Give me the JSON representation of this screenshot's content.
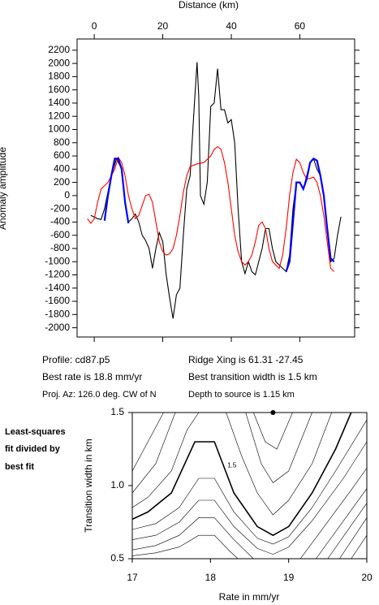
{
  "chart_data": [
    {
      "type": "line",
      "x_label": "Distance (km)",
      "y_label": "Anomaly amplitude",
      "xlim": [
        -5,
        76
      ],
      "xticks": [
        0,
        20,
        40,
        60
      ],
      "ylim": [
        -2140,
        2370
      ],
      "yticks": [
        -2000,
        -1800,
        -1600,
        -1400,
        -1200,
        -1000,
        -800,
        -600,
        -400,
        -200,
        0,
        200,
        400,
        600,
        800,
        1000,
        1200,
        1400,
        1600,
        1800,
        2000,
        2200
      ],
      "series": [
        {
          "color": "#000000",
          "x": [
            -1,
            1,
            2,
            3,
            5,
            6.5,
            8,
            9,
            10,
            11,
            12,
            13,
            14,
            15,
            16,
            17,
            18,
            19,
            20,
            21,
            22,
            23,
            24,
            25,
            26,
            27,
            28,
            29,
            30,
            30.5,
            31,
            32,
            33,
            34,
            35,
            36,
            37,
            38,
            39,
            40,
            41,
            42,
            43,
            44,
            45,
            46,
            47,
            48,
            49,
            50,
            51,
            52,
            53,
            54,
            55,
            56,
            57,
            58,
            59,
            60,
            61,
            62,
            63,
            64,
            65,
            66,
            67,
            68,
            69,
            70,
            71,
            72
          ],
          "values": [
            -300,
            -350,
            -360,
            -200,
            300,
            560,
            400,
            -100,
            -400,
            -350,
            -280,
            -400,
            -600,
            -680,
            -800,
            -1100,
            -800,
            -560,
            -700,
            -1200,
            -1550,
            -1860,
            -1500,
            -1400,
            -600,
            100,
            300,
            1200,
            2020,
            1500,
            0,
            -130,
            200,
            1350,
            1400,
            1920,
            1300,
            1300,
            1100,
            1150,
            800,
            -200,
            -1000,
            -1180,
            -1000,
            -1150,
            -1200,
            -1000,
            -800,
            -500,
            -500,
            -800,
            -1000,
            -1050,
            -1100,
            -1150,
            -900,
            -200,
            200,
            200,
            100,
            300,
            500,
            560,
            400,
            300,
            0,
            -500,
            -1000,
            -950,
            -600,
            -320
          ]
        },
        {
          "color": "#ff0000",
          "x": [
            -2,
            -1,
            0,
            1,
            2,
            4,
            6,
            7,
            8,
            9,
            10,
            11,
            12,
            13,
            14,
            15,
            16,
            17,
            18,
            19,
            20,
            21,
            22,
            23,
            24,
            25,
            26,
            27,
            28,
            30,
            32,
            34,
            35,
            36,
            37,
            38,
            39,
            40,
            41,
            42,
            43,
            44,
            45,
            46,
            47,
            48,
            49,
            50,
            51,
            52,
            53,
            54,
            55,
            56,
            57,
            58,
            59,
            60,
            61,
            62,
            63,
            64,
            65,
            66,
            67,
            68,
            69,
            70
          ],
          "values": [
            -350,
            -420,
            -350,
            -100,
            100,
            200,
            400,
            580,
            500,
            300,
            0,
            -200,
            -350,
            -300,
            -150,
            0,
            20,
            -100,
            -400,
            -700,
            -850,
            -900,
            -880,
            -800,
            -600,
            -300,
            50,
            300,
            440,
            480,
            500,
            600,
            700,
            740,
            700,
            500,
            200,
            -200,
            -600,
            -850,
            -1000,
            -1050,
            -1000,
            -900,
            -700,
            -450,
            -400,
            -500,
            -800,
            -1000,
            -1050,
            -1100,
            -900,
            -500,
            0,
            350,
            550,
            500,
            350,
            250,
            260,
            280,
            200,
            0,
            -300,
            -700,
            -1100,
            -1150
          ]
        },
        {
          "color": "#0000ff",
          "x": [
            3,
            4,
            5,
            6,
            7,
            8,
            9,
            10,
            33,
            56,
            57,
            58,
            59,
            60,
            61,
            62,
            63,
            64,
            65,
            66,
            67,
            68,
            69,
            70
          ],
          "values": [
            -380,
            0,
            300,
            560,
            560,
            400,
            -100,
            -420,
            null,
            -1150,
            -1000,
            -400,
            200,
            200,
            100,
            250,
            500,
            560,
            530,
            300,
            0,
            -500,
            -950,
            -1000
          ]
        }
      ],
      "notes": [
        "Profile: cd87.p5",
        "Best rate is 18.8 mm/yr",
        "Proj. Az: 126.0 deg. CW of N",
        "Ridge Xing is 61.31 -27.45",
        "Best transition width is 1.5 km",
        "Depth to source is   1.15 km"
      ]
    },
    {
      "type": "contour",
      "side_label": [
        "Least-squares",
        "fit divided by",
        "best fit"
      ],
      "x_label": "Rate in mm/yr",
      "y_label": "Transition width in km",
      "xlim": [
        17,
        20
      ],
      "xticks": [
        17,
        18,
        19,
        20
      ],
      "ylim": [
        0.5,
        1.5
      ],
      "yticks": [
        0.5,
        {
          "value": 1,
          "label": "1.0"
        },
        1.5
      ],
      "best_fit": {
        "x": 18.8,
        "y": 1.5
      },
      "contours": [
        {
          "label": "1.5",
          "x": [
            17,
            17.2,
            17.5,
            17.8,
            18.05,
            18.3,
            18.6,
            18.8,
            19.0,
            19.3,
            19.6,
            19.8
          ],
          "y": [
            0.77,
            0.82,
            0.95,
            1.3,
            1.3,
            0.95,
            0.72,
            0.66,
            0.72,
            0.95,
            1.25,
            1.5
          ]
        },
        {
          "x": [
            17,
            17.3,
            17.6,
            17.85,
            18.05,
            18.3,
            18.6,
            18.8,
            19.0,
            19.3,
            19.6,
            20.0
          ],
          "y": [
            0.7,
            0.74,
            0.85,
            1.05,
            1.05,
            0.82,
            0.64,
            0.6,
            0.65,
            0.85,
            1.1,
            1.45
          ]
        },
        {
          "x": [
            17,
            17.3,
            17.6,
            17.85,
            18.05,
            18.3,
            18.6,
            18.8,
            19.0,
            19.3,
            19.7,
            20.0
          ],
          "y": [
            0.63,
            0.66,
            0.75,
            0.9,
            0.9,
            0.72,
            0.57,
            0.53,
            0.58,
            0.76,
            1.05,
            1.3
          ]
        },
        {
          "x": [
            17,
            17.3,
            17.6,
            17.85,
            18.05,
            18.3,
            18.55
          ],
          "y": [
            0.56,
            0.59,
            0.66,
            0.78,
            0.78,
            0.63,
            0.5
          ]
        },
        {
          "x": [
            19.15,
            19.4,
            19.8,
            20.0
          ],
          "y": [
            0.5,
            0.68,
            0.97,
            1.12
          ]
        },
        {
          "x": [
            17,
            17.3,
            17.6,
            17.85,
            18.05,
            18.25,
            18.35
          ],
          "y": [
            0.52,
            0.54,
            0.58,
            0.66,
            0.66,
            0.55,
            0.5
          ]
        },
        {
          "x": [
            17,
            17.2,
            17.5,
            17.7,
            17.85
          ],
          "y": [
            0.85,
            0.92,
            1.1,
            1.38,
            1.5
          ]
        },
        {
          "x": [
            18.2,
            18.4,
            18.6,
            18.8,
            19.0,
            19.3,
            19.55
          ],
          "y": [
            1.5,
            1.2,
            0.95,
            0.8,
            0.9,
            1.15,
            1.5
          ]
        },
        {
          "x": [
            17,
            17.3,
            17.55
          ],
          "y": [
            0.95,
            1.15,
            1.5
          ]
        },
        {
          "x": [
            18.45,
            18.65,
            18.8,
            19.0,
            19.3
          ],
          "y": [
            1.5,
            1.15,
            1.02,
            1.1,
            1.5
          ]
        },
        {
          "x": [
            17,
            17.3,
            17.4
          ],
          "y": [
            1.1,
            1.4,
            1.5
          ]
        },
        {
          "x": [
            18.55,
            18.7,
            18.85,
            19.05
          ],
          "y": [
            1.5,
            1.3,
            1.25,
            1.5
          ]
        },
        {
          "x": [
            19.35,
            20.0
          ],
          "y": [
            0.5,
            0.98
          ]
        },
        {
          "x": [
            19.5,
            20.0
          ],
          "y": [
            0.5,
            0.88
          ]
        },
        {
          "x": [
            19.65,
            20.0
          ],
          "y": [
            0.5,
            0.78
          ]
        },
        {
          "x": [
            19.8,
            20.0
          ],
          "y": [
            0.5,
            0.66
          ]
        },
        {
          "x": [
            19.6,
            19.9
          ],
          "y": [
            1.5,
            1.5
          ]
        }
      ]
    }
  ]
}
